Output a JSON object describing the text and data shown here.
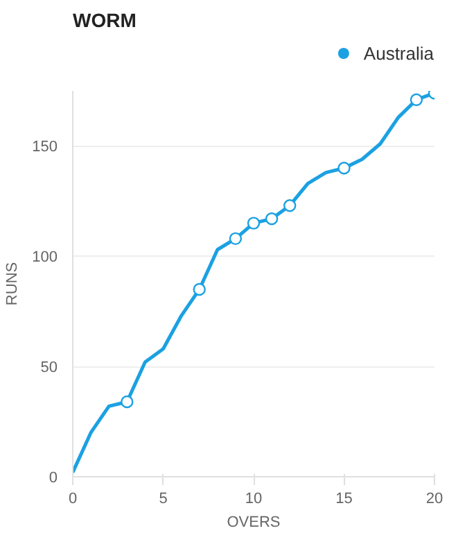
{
  "chart_data": {
    "type": "line",
    "title": "WORM",
    "xlabel": "OVERS",
    "ylabel": "RUNS",
    "xlim": [
      0,
      20
    ],
    "ylim": [
      0,
      175
    ],
    "xticks": [
      0,
      5,
      10,
      15,
      20
    ],
    "yticks": [
      0,
      50,
      100,
      150
    ],
    "grid": "y",
    "legend": "top right",
    "line_style": "solid",
    "series": [
      {
        "name": "Australia",
        "color": "#1ba1e2",
        "x": [
          0,
          1,
          2,
          3,
          4,
          5,
          6,
          7,
          8,
          9,
          10,
          11,
          12,
          13,
          14,
          15,
          16,
          17,
          18,
          19,
          20
        ],
        "values": [
          2,
          20,
          32,
          34,
          52,
          58,
          73,
          85,
          103,
          108,
          115,
          117,
          123,
          133,
          138,
          140,
          144,
          151,
          163,
          171,
          174
        ]
      },
      {
        "type": "scatter",
        "marker": "circle",
        "color": "#1ba1e2",
        "x": [
          3,
          7,
          9,
          10,
          11,
          12,
          15,
          19,
          20
        ],
        "values": [
          34,
          85,
          108,
          115,
          117,
          123,
          140,
          171,
          174
        ]
      }
    ]
  }
}
